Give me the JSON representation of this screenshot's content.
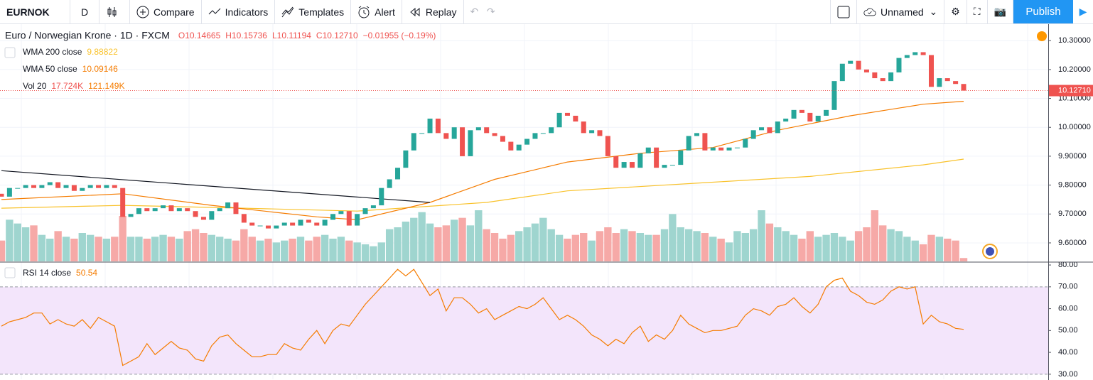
{
  "toolbar": {
    "symbol": "EURNOK",
    "interval": "D",
    "compare": "Compare",
    "indicators": "Indicators",
    "templates": "Templates",
    "alert": "Alert",
    "replay": "Replay",
    "layout": "Unnamed",
    "publish": "Publish"
  },
  "chart_data": {
    "type": "candlestick",
    "title": "Euro / Norwegian Krone · 1D · FXCM",
    "ohlc_text": [
      "O10.14665",
      "H10.15736",
      "L10.11194",
      "C10.12710",
      "−0.01955 (−0.19%)"
    ],
    "first_open": 9.77,
    "close": [
      9.76,
      9.79,
      9.79,
      9.8,
      9.79,
      9.8,
      9.81,
      9.79,
      9.8,
      9.78,
      9.79,
      9.8,
      9.79,
      9.8,
      9.79,
      9.69,
      9.7,
      9.72,
      9.71,
      9.72,
      9.73,
      9.71,
      9.72,
      9.71,
      9.69,
      9.68,
      9.71,
      9.72,
      9.74,
      9.7,
      9.67,
      9.66,
      9.66,
      9.65,
      9.66,
      9.67,
      9.66,
      9.68,
      9.67,
      9.66,
      9.68,
      9.7,
      9.71,
      9.66,
      9.7,
      9.72,
      9.73,
      9.79,
      9.82,
      9.86,
      9.92,
      9.98,
      9.98,
      10.03,
      9.98,
      9.96,
      10.0,
      9.9,
      9.99,
      10.0,
      9.98,
      9.97,
      9.95,
      9.92,
      9.94,
      9.96,
      9.98,
      9.98,
      10.0,
      10.05,
      10.04,
      10.02,
      9.98,
      9.99,
      9.97,
      9.9,
      9.86,
      9.88,
      9.86,
      9.91,
      9.93,
      9.86,
      9.87,
      9.87,
      9.92,
      9.97,
      9.98,
      9.92,
      9.93,
      9.92,
      9.93,
      9.93,
      9.96,
      9.99,
      10.0,
      9.98,
      10.02,
      10.03,
      10.06,
      10.05,
      10.02,
      10.04,
      10.06,
      10.16,
      10.22,
      10.23,
      10.2,
      10.19,
      10.17,
      10.16,
      10.19,
      10.24,
      10.25,
      10.26,
      10.25,
      10.14,
      10.17,
      10.16,
      10.15,
      10.1271
    ],
    "up_color": "#26a69a",
    "down_color": "#ef5350",
    "vol_up_color": "#9fd5cf",
    "vol_down_color": "#f6a9a7",
    "ylim": [
      9.536,
      10.357
    ],
    "yticks": [
      {
        "value": 10.3,
        "label": "10.30000"
      },
      {
        "value": 10.2,
        "label": "10.20000"
      },
      {
        "value": 10.1,
        "label": "10.10000"
      },
      {
        "value": 10.0,
        "label": "10.00000"
      },
      {
        "value": 9.9,
        "label": "9.90000"
      },
      {
        "value": 9.8,
        "label": "9.80000"
      },
      {
        "value": 9.7,
        "label": "9.70000"
      },
      {
        "value": 9.6,
        "label": "9.60000"
      }
    ],
    "last_price": {
      "value": 10.1271,
      "label": "10.12710"
    },
    "series": [
      {
        "name": "WMA 200 close",
        "last_label": "9.88822",
        "color": "#f9c22b",
        "x": [
          0,
          15,
          30,
          44,
          60,
          70,
          88,
          100,
          114,
          119
        ],
        "values": [
          9.72,
          9.73,
          9.72,
          9.71,
          9.74,
          9.78,
          9.81,
          9.83,
          9.87,
          9.89
        ]
      },
      {
        "name": "WMA 50 close",
        "last_label": "10.09146",
        "color": "#f57c00",
        "x": [
          0,
          15,
          26,
          39,
          44,
          53,
          61,
          70,
          79,
          88,
          96,
          105,
          114,
          119
        ],
        "values": [
          9.75,
          9.77,
          9.73,
          9.69,
          9.68,
          9.74,
          9.82,
          9.88,
          9.91,
          9.93,
          9.99,
          10.04,
          10.08,
          10.09
        ]
      }
    ],
    "trend_line": {
      "color": "#131722",
      "x": [
        0,
        53
      ],
      "values": [
        9.85,
        9.74
      ]
    },
    "volume_legend": [
      "Vol 20",
      "17.724K",
      "121.149K"
    ],
    "volume": [
      110,
      220,
      200,
      180,
      190,
      140,
      120,
      160,
      130,
      120,
      150,
      140,
      130,
      120,
      130,
      240,
      130,
      130,
      120,
      130,
      140,
      130,
      120,
      160,
      170,
      150,
      140,
      130,
      120,
      110,
      170,
      130,
      110,
      120,
      100,
      110,
      120,
      130,
      110,
      130,
      140,
      120,
      130,
      110,
      100,
      90,
      80,
      100,
      170,
      180,
      210,
      230,
      260,
      200,
      180,
      190,
      220,
      230,
      190,
      270,
      170,
      150,
      120,
      140,
      160,
      180,
      200,
      230,
      170,
      140,
      120,
      140,
      150,
      110,
      160,
      180,
      150,
      170,
      160,
      150,
      140,
      140,
      170,
      250,
      180,
      170,
      160,
      150,
      130,
      120,
      100,
      160,
      150,
      170,
      270,
      200,
      180,
      160,
      140,
      120,
      160,
      130,
      140,
      150,
      130,
      110,
      160,
      180,
      270,
      190,
      170,
      160,
      130,
      110,
      90,
      140,
      130,
      120,
      110,
      17.724
    ],
    "rsi": {
      "name": "RSI 14 close",
      "last_label": "50.54",
      "color": "#f57c00",
      "band_color": "#f3e5fb",
      "ylim": [
        28,
        81
      ],
      "yticks": [
        {
          "value": 80,
          "label": "80.00"
        },
        {
          "value": 70,
          "label": "70.00"
        },
        {
          "value": 60,
          "label": "60.00"
        },
        {
          "value": 50,
          "label": "50.00"
        },
        {
          "value": 40,
          "label": "40.00"
        },
        {
          "value": 30,
          "label": "30.00"
        }
      ],
      "band": [
        30,
        70
      ],
      "values": [
        52,
        54,
        55,
        56,
        58,
        58,
        53,
        55,
        53,
        52,
        55,
        51,
        56,
        54,
        52,
        34,
        36,
        38,
        44,
        39,
        42,
        45,
        42,
        41,
        37,
        36,
        43,
        47,
        48,
        44,
        41,
        38,
        38,
        39,
        39,
        44,
        42,
        41,
        46,
        50,
        44,
        50,
        53,
        52,
        57,
        62,
        66,
        70,
        74,
        78,
        75,
        78,
        72,
        66,
        69,
        59,
        65,
        65,
        62,
        58,
        60,
        55,
        57,
        59,
        61,
        60,
        62,
        65,
        60,
        55,
        57,
        55,
        52,
        48,
        46,
        43,
        46,
        44,
        49,
        52,
        45,
        48,
        46,
        50,
        57,
        53,
        51,
        49,
        50,
        50,
        51,
        52,
        57,
        60,
        59,
        57,
        61,
        62,
        65,
        61,
        58,
        62,
        70,
        73,
        74,
        68,
        66,
        63,
        62,
        64,
        68,
        70,
        69,
        70,
        53,
        57,
        54,
        53,
        51,
        50.54
      ]
    }
  }
}
